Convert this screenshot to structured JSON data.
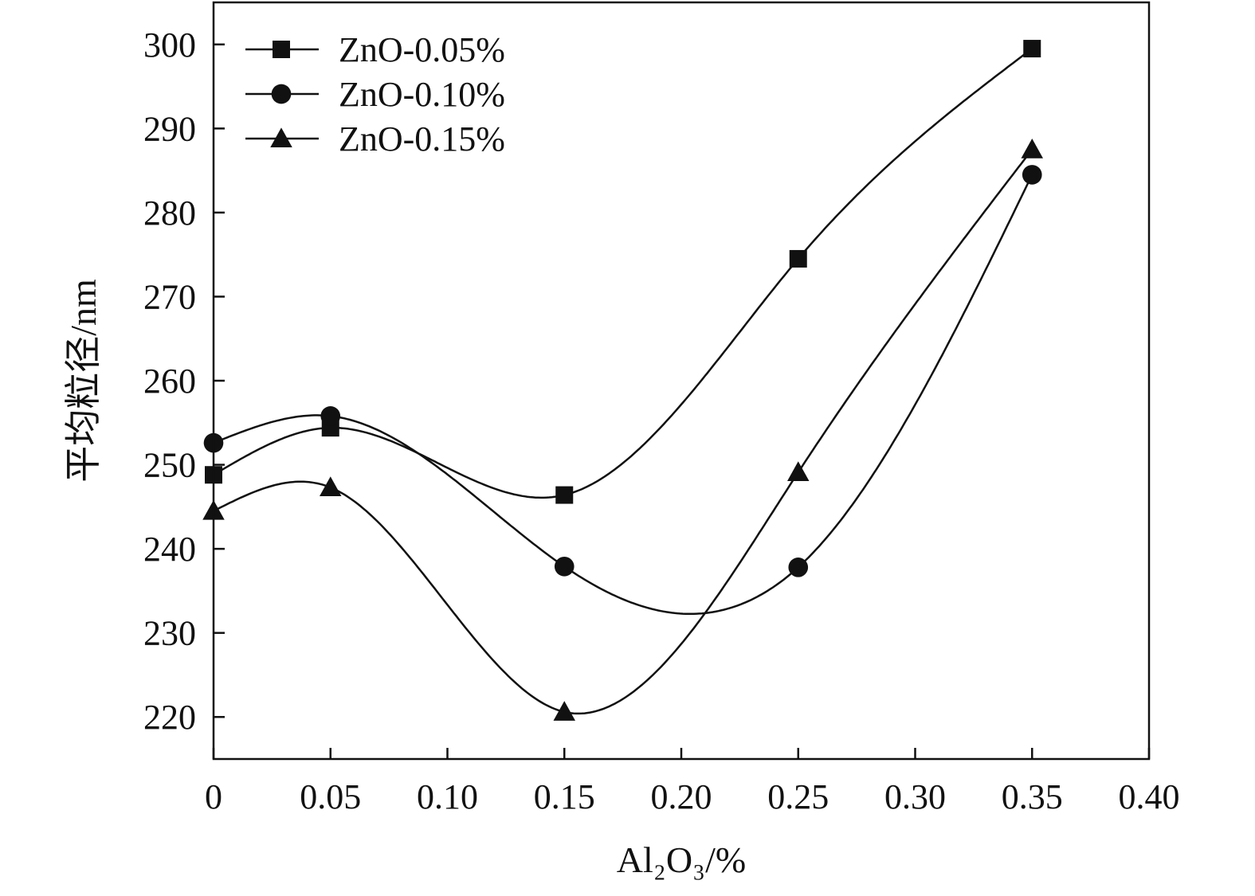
{
  "chart_data": {
    "type": "line",
    "title": "",
    "xlabel": "Al₂O₃/%",
    "ylabel": "平均粒径/nm",
    "xlim": [
      0,
      0.4
    ],
    "ylim": [
      215,
      305
    ],
    "xticks": [
      0,
      0.05,
      0.1,
      0.15,
      0.2,
      0.25,
      0.3,
      0.35,
      0.4
    ],
    "xtick_labels": [
      "0",
      "0.05",
      "0.10",
      "0.15",
      "0.20",
      "0.25",
      "0.30",
      "0.35",
      "0.40"
    ],
    "yticks": [
      220,
      230,
      240,
      250,
      260,
      270,
      280,
      290,
      300
    ],
    "ytick_labels": [
      "220",
      "230",
      "240",
      "250",
      "260",
      "270",
      "280",
      "290",
      "300"
    ],
    "grid": false,
    "legend_position": "top-left",
    "smoothed": true,
    "x": [
      0,
      0.05,
      0.15,
      0.25,
      0.35
    ],
    "series": [
      {
        "name": "ZnO-0.05%",
        "marker": "square",
        "color": "#111111",
        "values": [
          248.8,
          254.4,
          246.4,
          274.5,
          299.5
        ]
      },
      {
        "name": "ZnO-0.10%",
        "marker": "circle",
        "color": "#111111",
        "values": [
          252.6,
          255.8,
          237.9,
          237.8,
          284.5
        ]
      },
      {
        "name": "ZnO-0.15%",
        "marker": "triangle",
        "color": "#111111",
        "values": [
          244.5,
          247.3,
          220.6,
          249.1,
          287.5
        ]
      }
    ]
  }
}
